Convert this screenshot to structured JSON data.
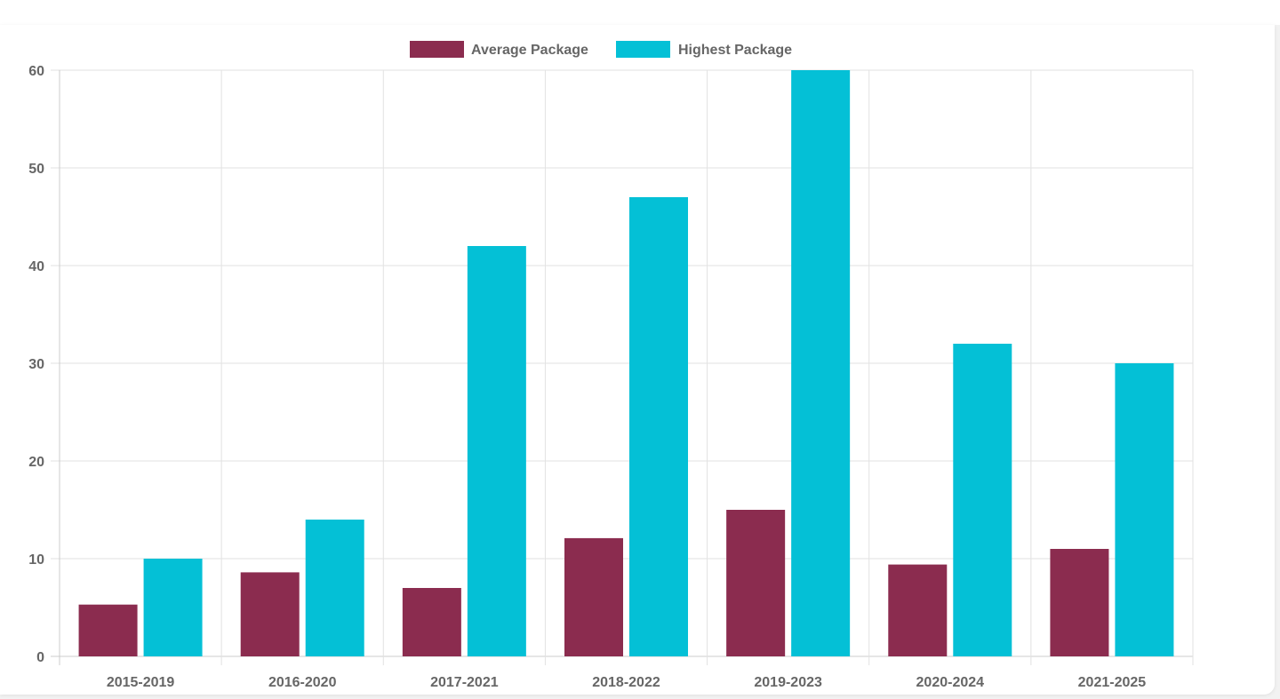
{
  "chart_data": {
    "type": "bar",
    "categories": [
      "2015-2019",
      "2016-2020",
      "2017-2021",
      "2018-2022",
      "2019-2023",
      "2020-2024",
      "2021-2025"
    ],
    "series": [
      {
        "name": "Average Package",
        "color": "#8b2c4f",
        "values": [
          5.3,
          8.6,
          7.0,
          12.1,
          15.0,
          9.4,
          11.0
        ]
      },
      {
        "name": "Highest Package",
        "color": "#04c0d6",
        "values": [
          10,
          14,
          42,
          47,
          60,
          32,
          30
        ]
      }
    ],
    "y_ticks": [
      "0",
      "10",
      "20",
      "30",
      "40",
      "50",
      "60"
    ],
    "ylim": [
      0,
      60
    ],
    "grid": true,
    "legend_position": "top-center",
    "title": "",
    "xlabel": "",
    "ylabel": ""
  }
}
